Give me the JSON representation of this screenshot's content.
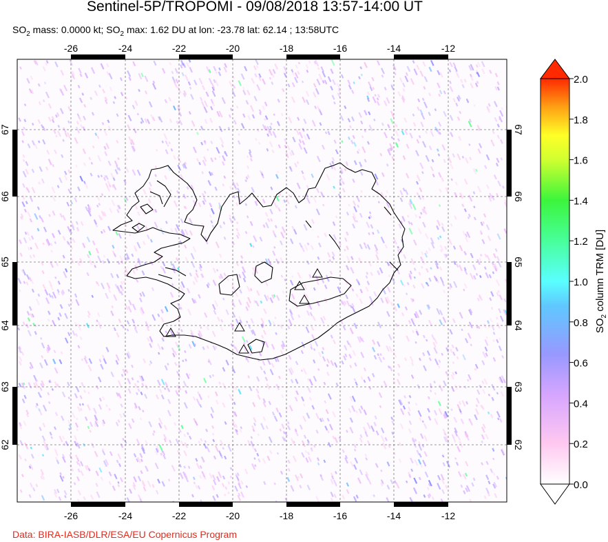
{
  "title": "Sentinel-5P/TROPOMI - 09/08/2018 13:57-14:00 UT",
  "subtitle": {
    "mass_prefix": "SO",
    "mass_sub": "2",
    "mass_text": " mass: 0.0000 kt; SO",
    "max_sub": "2",
    "max_text": " max: 1.62 DU at lon: -23.78 lat: 62.14 ; 13:58UTC"
  },
  "credit": "Data: BIRA-IASB/DLR/ESA/EU Copernicus Program",
  "map": {
    "lon_ticks": [
      "-26",
      "-24",
      "-22",
      "-20",
      "-18",
      "-16",
      "-14",
      "-12"
    ],
    "lat_ticks": [
      "67",
      "66",
      "65",
      "64",
      "63",
      "62"
    ],
    "volcanoes": [
      "volcano",
      "volcano",
      "volcano",
      "volcano",
      "volcano",
      "volcano"
    ]
  },
  "colorbar": {
    "label_main": "SO",
    "label_sub": "2",
    "label_rest": " column TRM [DU]",
    "ticks": [
      "2.0",
      "1.8",
      "1.6",
      "1.4",
      "1.2",
      "1.0",
      "0.8",
      "0.6",
      "0.4",
      "0.2",
      "0.0"
    ],
    "colors": [
      "#ffffff",
      "#ffc8f0",
      "#d2a0ff",
      "#8c8cff",
      "#5ad2ff",
      "#50ffd2",
      "#3cff5a",
      "#b4ff3c",
      "#ffff28",
      "#ffb414",
      "#ff5a0a",
      "#e00000"
    ]
  }
}
